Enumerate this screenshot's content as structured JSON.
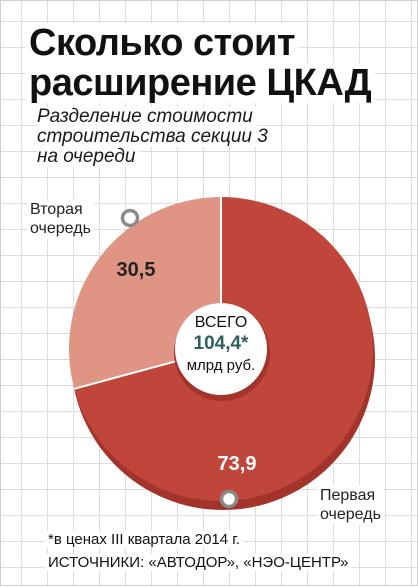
{
  "header": {
    "title_line1": "Сколько стоит",
    "title_line2": "расширение ЦКАД",
    "subtitle_line1": "Разделение стоимости",
    "subtitle_line2": "строительства секции 3",
    "subtitle_line3": "на очереди"
  },
  "chart_data": {
    "type": "pie",
    "variant": "donut",
    "categories": [
      "Первая очередь",
      "Вторая очередь"
    ],
    "values": [
      73.9,
      30.5
    ],
    "value_labels": [
      "73,9",
      "30,5"
    ],
    "legend_labels": {
      "first_line1": "Первая",
      "first_line2": "очередь",
      "second_line1": "Вторая",
      "second_line2": "очередь"
    },
    "colors": [
      "#c0453b",
      "#e09484"
    ],
    "shadow_color": "#a2342c",
    "center": {
      "label": "ВСЕГО",
      "value": "104,4*",
      "unit": "млрд руб."
    }
  },
  "footer": {
    "footnote": "*в ценах III квартала 2014 г.",
    "sources": "ИСТОЧНИКИ: «АВТОДОР», «НЭО-ЦЕНТР»"
  }
}
